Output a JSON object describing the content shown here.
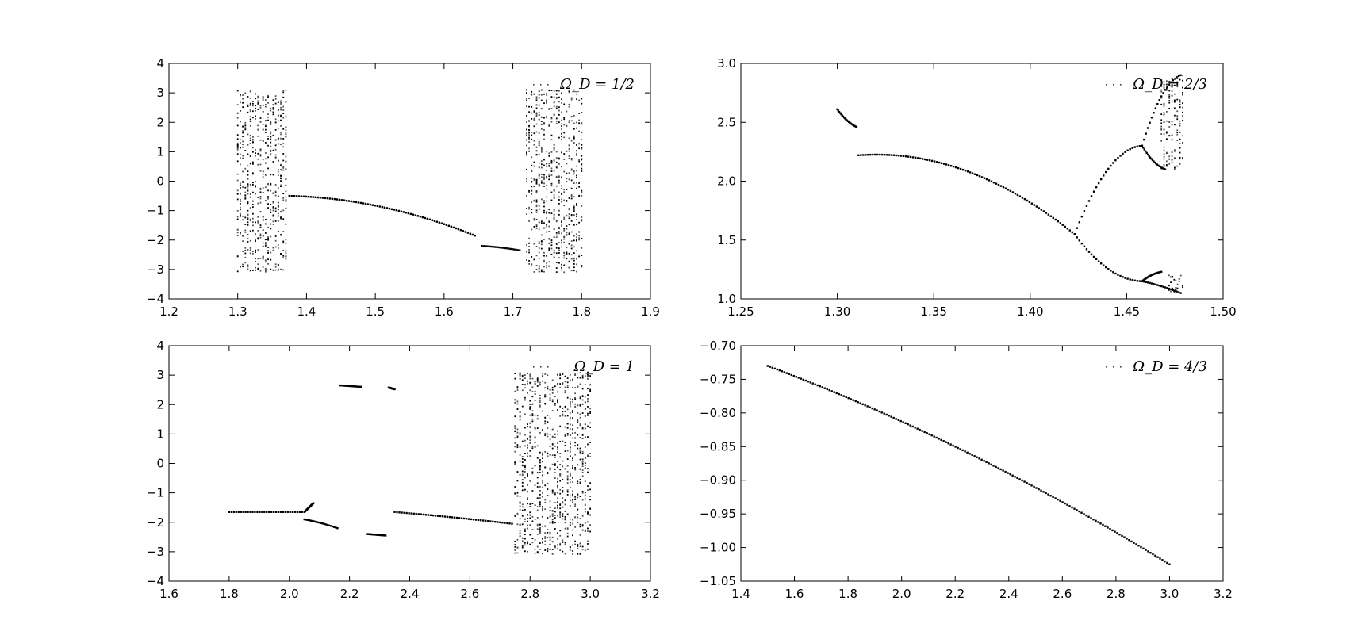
{
  "chart_data": [
    {
      "type": "scatter",
      "legend": "Ω_D = 1/2",
      "legend_position": "top-right",
      "grid": false,
      "xlim": [
        1.2,
        1.9
      ],
      "ylim": [
        -4,
        4
      ],
      "xticks": [
        "1.2",
        "1.3",
        "1.4",
        "1.5",
        "1.6",
        "1.7",
        "1.8",
        "1.9"
      ],
      "yticks": [
        "−4",
        "−3",
        "−2",
        "−1",
        "0",
        "1",
        "2",
        "3",
        "4"
      ],
      "dense_points": true,
      "regions": [
        {
          "kind": "chaos",
          "x": [
            1.3,
            1.37
          ],
          "y": [
            -3.1,
            3.1
          ]
        },
        {
          "kind": "curve",
          "x": [
            1.375,
            1.645
          ],
          "y": [
            -0.5,
            -1.85
          ],
          "curvature": 0.55
        },
        {
          "kind": "curve",
          "x": [
            1.655,
            1.71
          ],
          "y": [
            -2.2,
            -2.35
          ],
          "curvature": 0.3
        },
        {
          "kind": "chaos",
          "x": [
            1.72,
            1.8
          ],
          "y": [
            -3.1,
            3.1
          ]
        }
      ]
    },
    {
      "type": "scatter",
      "legend": "Ω_D = 2/3",
      "legend_position": "top-right",
      "grid": false,
      "xlim": [
        1.25,
        1.5
      ],
      "ylim": [
        1.0,
        3.0
      ],
      "xticks": [
        "1.25",
        "1.30",
        "1.35",
        "1.40",
        "1.45",
        "1.50"
      ],
      "yticks": [
        "1.0",
        "1.5",
        "2.0",
        "2.5",
        "3.0"
      ],
      "regions": [
        {
          "kind": "curve",
          "x": [
            1.3,
            1.31
          ],
          "y": [
            2.61,
            2.46
          ],
          "curvature": -0.3
        },
        {
          "kind": "curve",
          "x": [
            1.311,
            1.423
          ],
          "y": [
            2.22,
            1.55
          ],
          "curvature": 0.75
        },
        {
          "kind": "curve",
          "x": [
            1.423,
            1.458
          ],
          "y": [
            1.55,
            2.3
          ],
          "curvature": -0.6
        },
        {
          "kind": "curve",
          "x": [
            1.423,
            1.458
          ],
          "y": [
            1.55,
            1.15
          ],
          "curvature": -0.6
        },
        {
          "kind": "curve",
          "x": [
            1.458,
            1.478
          ],
          "y": [
            2.3,
            2.9
          ],
          "curvature": -0.5
        },
        {
          "kind": "curve",
          "x": [
            1.458,
            1.47
          ],
          "y": [
            2.3,
            2.1
          ],
          "curvature": -0.4
        },
        {
          "kind": "curve",
          "x": [
            1.458,
            1.478
          ],
          "y": [
            1.15,
            1.05
          ],
          "curvature": 0.2
        },
        {
          "kind": "curve",
          "x": [
            1.458,
            1.468
          ],
          "y": [
            1.15,
            1.23
          ],
          "curvature": -0.4
        },
        {
          "kind": "chaos",
          "x": [
            1.468,
            1.479
          ],
          "y": [
            2.1,
            2.9
          ]
        },
        {
          "kind": "chaos",
          "x": [
            1.472,
            1.479
          ],
          "y": [
            1.05,
            1.2
          ]
        }
      ]
    },
    {
      "type": "scatter",
      "legend": "Ω_D = 1",
      "legend_position": "top-right",
      "grid": false,
      "xlim": [
        1.6,
        3.2
      ],
      "ylim": [
        -4,
        4
      ],
      "xticks": [
        "1.6",
        "1.8",
        "2.0",
        "2.2",
        "2.4",
        "2.6",
        "2.8",
        "3.0",
        "3.2"
      ],
      "yticks": [
        "−4",
        "−3",
        "−2",
        "−1",
        "0",
        "1",
        "2",
        "3",
        "4"
      ],
      "regions": [
        {
          "kind": "curve",
          "x": [
            1.8,
            2.05
          ],
          "y": [
            -1.65,
            -1.65
          ],
          "curvature": 0
        },
        {
          "kind": "curve",
          "x": [
            2.05,
            2.08
          ],
          "y": [
            -1.65,
            -1.35
          ],
          "curvature": 0
        },
        {
          "kind": "curve",
          "x": [
            2.05,
            2.16
          ],
          "y": [
            -1.9,
            -2.2
          ],
          "curvature": 0.2
        },
        {
          "kind": "curve",
          "x": [
            2.17,
            2.24
          ],
          "y": [
            2.65,
            2.6
          ],
          "curvature": 0
        },
        {
          "kind": "curve",
          "x": [
            2.26,
            2.32
          ],
          "y": [
            -2.4,
            -2.45
          ],
          "curvature": 0
        },
        {
          "kind": "curve",
          "x": [
            2.33,
            2.35
          ],
          "y": [
            2.58,
            2.52
          ],
          "curvature": 0
        },
        {
          "kind": "curve",
          "x": [
            2.35,
            2.74
          ],
          "y": [
            -1.65,
            -2.05
          ],
          "curvature": 0.1
        },
        {
          "kind": "chaos",
          "x": [
            2.75,
            3.0
          ],
          "y": [
            -3.1,
            3.1
          ]
        }
      ]
    },
    {
      "type": "scatter",
      "legend": "Ω_D = 4/3",
      "legend_position": "top-right",
      "grid": false,
      "xlim": [
        1.4,
        3.2
      ],
      "ylim": [
        -1.05,
        -0.7
      ],
      "xticks": [
        "1.4",
        "1.6",
        "1.8",
        "2.0",
        "2.2",
        "2.4",
        "2.6",
        "2.8",
        "3.0",
        "3.2"
      ],
      "yticks": [
        "−1.05",
        "−1.00",
        "−0.95",
        "−0.90",
        "−0.85",
        "−0.80",
        "−0.75",
        "−0.70"
      ],
      "regions": [
        {
          "kind": "curve",
          "x": [
            1.5,
            3.0
          ],
          "y": [
            -0.73,
            -1.025
          ],
          "curvature": 0.15
        }
      ]
    }
  ]
}
